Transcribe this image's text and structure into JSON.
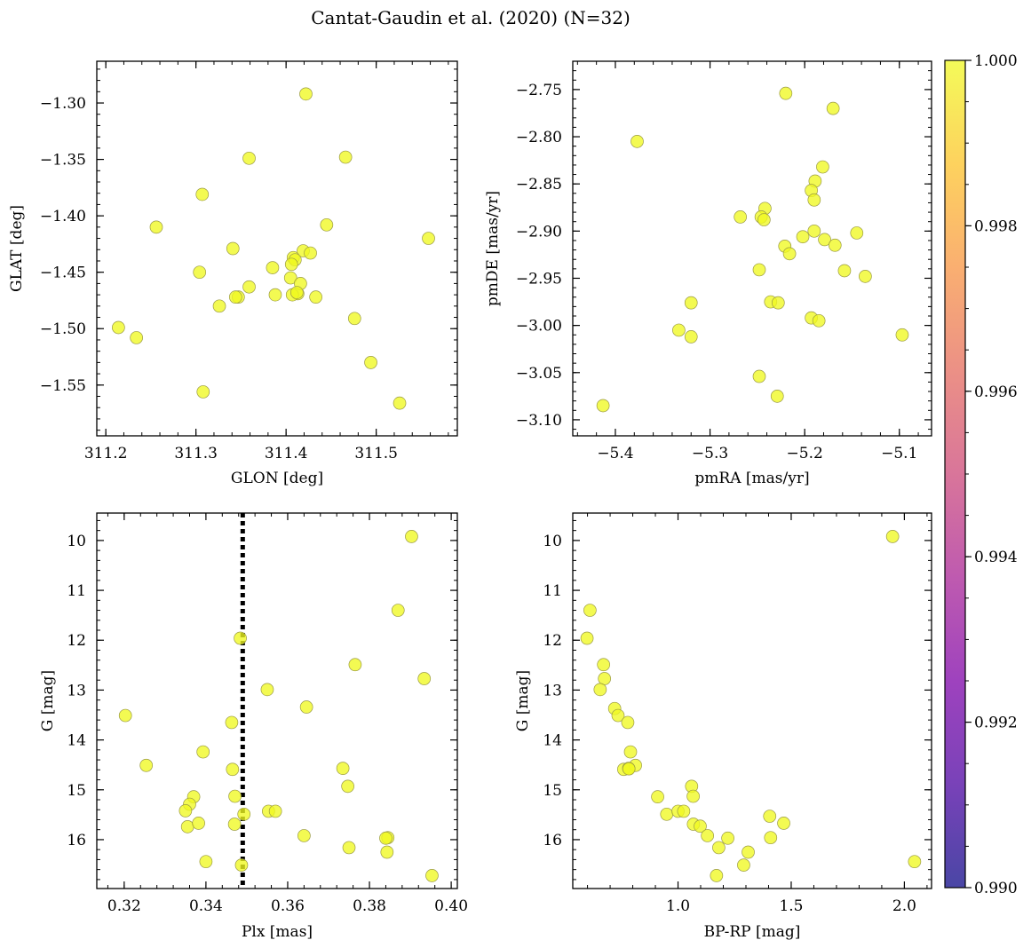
{
  "suptitle": "Cantat-Gaudin et al. (2020) (N=32)",
  "colorbar": {
    "ticks": [
      1.0,
      0.998,
      0.996,
      0.994,
      0.992,
      0.99
    ],
    "tick_labels": [
      "1.000",
      "0.998",
      "0.996",
      "0.994",
      "0.992",
      "0.990"
    ],
    "range": [
      0.99,
      1.0
    ],
    "colormap": "plasma"
  },
  "point_color": "#f0f921",
  "chart_data": [
    {
      "id": "sky",
      "type": "scatter",
      "xlabel": "GLON [deg]",
      "ylabel": "GLAT [deg]",
      "xlim": [
        311.19,
        311.59
      ],
      "ylim": [
        -1.595,
        -1.263
      ],
      "invert_y": false,
      "xticks": [
        311.2,
        311.3,
        311.4,
        311.5
      ],
      "xtick_labels": [
        "311.2",
        "311.3",
        "311.4",
        "311.5"
      ],
      "yticks": [
        -1.3,
        -1.35,
        -1.4,
        -1.45,
        -1.5,
        -1.55
      ],
      "ytick_labels": [
        "−1.30",
        "−1.35",
        "−1.40",
        "−1.45",
        "−1.50",
        "−1.55"
      ],
      "x": [
        311.422,
        311.359,
        311.466,
        311.307,
        311.256,
        311.445,
        311.558,
        311.341,
        311.419,
        311.408,
        311.41,
        311.406,
        311.304,
        311.385,
        311.359,
        311.347,
        311.388,
        311.405,
        311.413,
        311.416,
        311.433,
        311.427,
        311.326,
        311.214,
        311.234,
        311.476,
        311.494,
        311.308,
        311.526,
        311.407,
        311.344,
        311.412
      ],
      "y": [
        -1.292,
        -1.349,
        -1.348,
        -1.381,
        -1.41,
        -1.408,
        -1.42,
        -1.429,
        -1.431,
        -1.437,
        -1.439,
        -1.443,
        -1.45,
        -1.446,
        -1.463,
        -1.472,
        -1.47,
        -1.455,
        -1.469,
        -1.46,
        -1.472,
        -1.433,
        -1.48,
        -1.499,
        -1.508,
        -1.491,
        -1.53,
        -1.556,
        -1.566,
        -1.47,
        -1.472,
        -1.468
      ]
    },
    {
      "id": "pm",
      "type": "scatter",
      "xlabel": "pmRA [mas/yr]",
      "ylabel": "pmDE [mas/yr]",
      "xlim": [
        -5.445,
        -5.066
      ],
      "ylim": [
        -3.117,
        -2.72
      ],
      "invert_y": false,
      "xticks": [
        -5.4,
        -5.3,
        -5.2,
        -5.1
      ],
      "xtick_labels": [
        "−5.4",
        "−5.3",
        "−5.2",
        "−5.1"
      ],
      "yticks": [
        -2.75,
        -2.8,
        -2.85,
        -2.9,
        -2.95,
        -3.0,
        -3.05,
        -3.1
      ],
      "ytick_labels": [
        "−2.75",
        "−2.80",
        "−2.85",
        "−2.90",
        "−2.95",
        "−3.00",
        "−3.05",
        "−3.10"
      ],
      "x": [
        -5.22,
        -5.17,
        -5.377,
        -5.181,
        -5.189,
        -5.193,
        -5.19,
        -5.242,
        -5.268,
        -5.246,
        -5.243,
        -5.202,
        -5.19,
        -5.221,
        -5.216,
        -5.179,
        -5.145,
        -5.168,
        -5.248,
        -5.158,
        -5.136,
        -5.32,
        -5.236,
        -5.228,
        -5.193,
        -5.185,
        -5.333,
        -5.32,
        -5.097,
        -5.248,
        -5.229,
        -5.413
      ],
      "y": [
        -2.754,
        -2.77,
        -2.805,
        -2.832,
        -2.847,
        -2.857,
        -2.867,
        -2.876,
        -2.885,
        -2.885,
        -2.888,
        -2.906,
        -2.9,
        -2.916,
        -2.924,
        -2.909,
        -2.902,
        -2.915,
        -2.941,
        -2.942,
        -2.948,
        -2.976,
        -2.975,
        -2.976,
        -2.992,
        -2.995,
        -3.005,
        -3.012,
        -3.01,
        -3.054,
        -3.075,
        -3.085
      ]
    },
    {
      "id": "cmd-plx",
      "type": "scatter",
      "xlabel": "Plx [mas]",
      "ylabel": "G [mag]",
      "xlim": [
        0.3133,
        0.4015
      ],
      "ylim": [
        9.45,
        16.98
      ],
      "invert_y": true,
      "xticks": [
        0.32,
        0.34,
        0.36,
        0.38,
        0.4
      ],
      "xtick_labels": [
        "0.32",
        "0.34",
        "0.36",
        "0.38",
        "0.40"
      ],
      "yticks": [
        10,
        11,
        12,
        13,
        14,
        15,
        16
      ],
      "ytick_labels": [
        "10",
        "11",
        "12",
        "13",
        "14",
        "15",
        "16"
      ],
      "vline": {
        "x": 0.349,
        "style": "dotted"
      },
      "x": [
        0.3903,
        0.387,
        0.3484,
        0.3765,
        0.3934,
        0.355,
        0.3203,
        0.3646,
        0.3463,
        0.3393,
        0.3254,
        0.3465,
        0.3735,
        0.3747,
        0.337,
        0.3471,
        0.336,
        0.335,
        0.3355,
        0.3382,
        0.3553,
        0.3493,
        0.347,
        0.357,
        0.364,
        0.3845,
        0.384,
        0.375,
        0.3843,
        0.34,
        0.3487,
        0.3953
      ],
      "y": [
        9.92,
        11.4,
        11.96,
        12.49,
        12.77,
        12.99,
        13.51,
        13.34,
        13.65,
        14.24,
        14.51,
        14.59,
        14.57,
        14.93,
        15.14,
        15.13,
        15.29,
        15.42,
        15.74,
        15.67,
        15.43,
        15.49,
        15.69,
        15.43,
        15.92,
        15.96,
        15.97,
        16.16,
        16.25,
        16.44,
        16.51,
        16.72
      ]
    },
    {
      "id": "cmd-color",
      "type": "scatter",
      "xlabel": "BP-RP [mag]",
      "ylabel": "G [mag]",
      "xlim": [
        0.535,
        2.12
      ],
      "ylim": [
        9.45,
        16.98
      ],
      "invert_y": true,
      "xticks": [
        1.0,
        1.5,
        2.0
      ],
      "xtick_labels": [
        "1.0",
        "1.5",
        "2.0"
      ],
      "yticks": [
        10,
        11,
        12,
        13,
        14,
        15,
        16
      ],
      "ytick_labels": [
        "10",
        "11",
        "12",
        "13",
        "14",
        "15",
        "16"
      ],
      "x": [
        1.948,
        0.611,
        0.598,
        0.671,
        0.675,
        0.656,
        0.72,
        0.735,
        0.778,
        0.79,
        0.812,
        0.76,
        0.782,
        1.06,
        0.91,
        1.067,
        0.95,
        1.0,
        1.025,
        1.467,
        1.405,
        1.068,
        1.098,
        1.13,
        1.22,
        1.409,
        1.18,
        1.31,
        1.29,
        2.045,
        1.17,
        0.783
      ],
      "y": [
        9.92,
        11.4,
        11.96,
        12.49,
        12.77,
        12.99,
        13.37,
        13.51,
        13.65,
        14.24,
        14.51,
        14.59,
        14.57,
        14.93,
        15.14,
        15.13,
        15.49,
        15.43,
        15.43,
        15.67,
        15.53,
        15.69,
        15.73,
        15.92,
        15.97,
        15.96,
        16.16,
        16.25,
        16.51,
        16.44,
        16.72,
        14.58
      ]
    }
  ]
}
